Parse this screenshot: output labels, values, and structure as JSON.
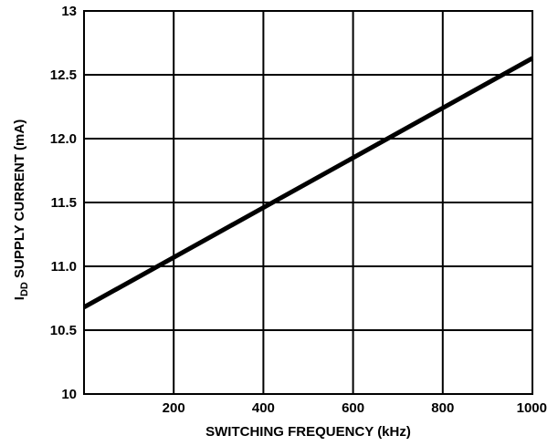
{
  "chart_data": {
    "type": "line",
    "xlabel": "SWITCHING FREQUENCY (kHz)",
    "ylabel": {
      "main": "I",
      "subscript": "DD",
      "rest": " SUPPLY CURRENT (mA)"
    },
    "xlim": [
      0,
      1000
    ],
    "ylim": [
      10,
      13
    ],
    "x_ticks": [
      200,
      400,
      600,
      800,
      1000
    ],
    "x_tick_labels": [
      "200",
      "400",
      "600",
      "800",
      "1000"
    ],
    "y_ticks": [
      10,
      10.5,
      11,
      11.5,
      12,
      12.5,
      13
    ],
    "y_tick_labels": [
      "10",
      "10.5",
      "11.0",
      "11.5",
      "12.0",
      "12.5",
      "13"
    ],
    "grid": true,
    "series": [
      {
        "color": "#000000",
        "x": [
          0,
          1000
        ],
        "y": [
          10.68,
          12.63
        ]
      }
    ]
  }
}
